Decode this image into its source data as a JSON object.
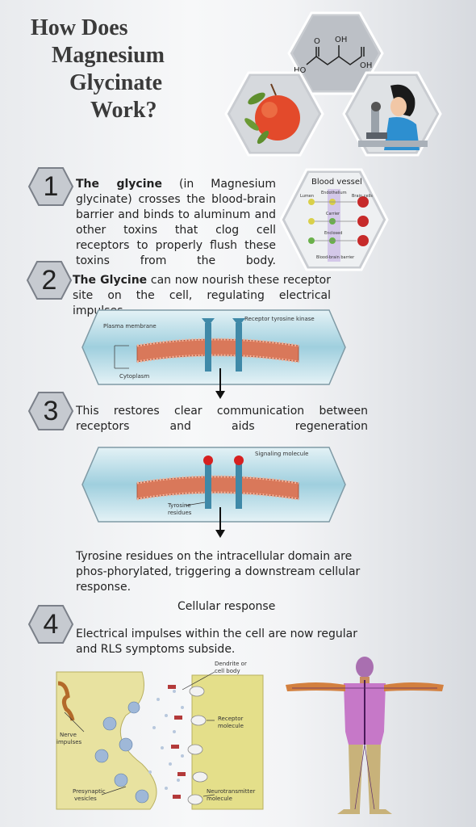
{
  "title": {
    "line1": "How Does",
    "line2": "Magnesium",
    "line3": "Glycinate",
    "line4": "Work?"
  },
  "hexagons": {
    "molecule": {
      "labels": {
        "oh_top": "OH",
        "o": "O",
        "ho": "HO",
        "oh_right": "OH"
      }
    },
    "fruit_icon": "apple-icon",
    "scientist_icon": "scientist-microscope-icon",
    "blood_vessel": {
      "title": "Blood vessel",
      "labels": {
        "endothelium": "Endothelium",
        "lumen": "Lumen",
        "brain_cells": "Brain cells",
        "carrier": "Carrier",
        "enclosed": "Enclosed",
        "barrier": "Blood-brain barrier"
      }
    }
  },
  "steps": [
    {
      "number": "1",
      "bold": "The glycine",
      "text": " (in  Magnesium glycinate) crosses the blood-brain barrier and binds to aluminum and other toxins that clog cell receptors to properly flush these toxins from the body."
    },
    {
      "number": "2",
      "bold": "The Glycine",
      "text": " can now  nourish  these  receptor site on the cell, regulating electrical impulses."
    },
    {
      "number": "3",
      "text": "This restores clear communication between receptors and aids regeneration"
    },
    {
      "number": "4",
      "heading": "Cellular response",
      "text": "Electrical impulses within the cell are now regular and RLS symptoms subside."
    }
  ],
  "diagram1": {
    "plasma_membrane": "Plasma membrane",
    "receptor": "Receptor tyrosine kinase",
    "cytoplasm": "Cytoplasm"
  },
  "diagram2": {
    "signaling": "Signaling molecule",
    "tyrosine": "Tyrosine",
    "residues": "residues"
  },
  "step3_after": "Tyrosine residues on the intracellular domain are phos-phorylated, triggering a downstream cellular response.",
  "synapse": {
    "dendrite": "Dendrite or",
    "cell_body": "cell body",
    "receptor": "Receptor",
    "molecule": "molecule",
    "nerve": "Nerve",
    "impulses": "impulses",
    "neurotransmitter": "Neurotransmitter",
    "molecule2": "molecule",
    "presynaptic": "Presynaptic",
    "vesicles": "vesicles"
  },
  "colors": {
    "hex_fill": "#c9ccd1",
    "membrane": "#d9785a",
    "panel": "#bfe0ea",
    "synapse_bg": "#e8e2a0"
  }
}
